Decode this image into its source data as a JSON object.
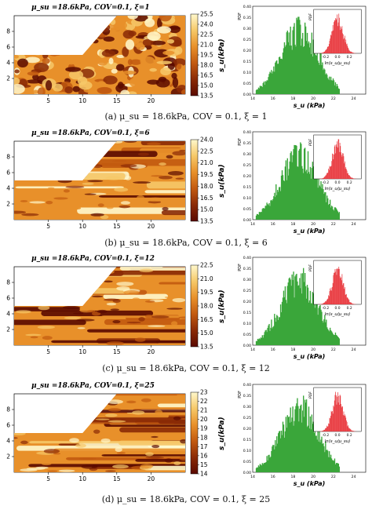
{
  "colors": {
    "cmap": [
      "#5a0a00",
      "#8a2a06",
      "#c25a10",
      "#e8902a",
      "#f6c868",
      "#fff8cc"
    ],
    "hist_green": "#3aa63a",
    "hist_red": "#e8343a"
  },
  "field": {
    "x_ticks": [
      "5",
      "10",
      "15",
      "20"
    ],
    "y_ticks": [
      "8",
      "6",
      "4",
      "2"
    ],
    "cbar_label": "s_u(kPa)"
  },
  "hist": {
    "ylabel": "PDF",
    "x_ticks": [
      "14",
      "16",
      "18",
      "20",
      "22",
      "24"
    ],
    "y_ticks": [
      "0.40",
      "0.35",
      "0.30",
      "0.25",
      "0.20",
      "0.15",
      "0.10",
      "0.05",
      "0.00"
    ],
    "xlabel": "s_u (kPa)",
    "inset_ylabel": "PDF",
    "inset_x_ticks": [
      "-0.2",
      "0.0",
      "0.2"
    ]
  },
  "panels": [
    {
      "title": "μ_su =18.6kPa, COV=0.1, ξ=1",
      "caption": "(a)   μ_su = 18.6kPa, COV = 0.1, ξ = 1",
      "cbar_ticks": [
        "25.5",
        "24.0",
        "22.5",
        "21.0",
        "19.5",
        "18.0",
        "16.5",
        "15.0",
        "13.5"
      ],
      "inset_xlabel": "ln(s_u/μ_su)",
      "band_count": 0
    },
    {
      "title": "μ_su =18.6kPa, COV=0.1, ξ=6",
      "caption": "(b)   μ_su = 18.6kPa, COV = 0.1, ξ = 6",
      "cbar_ticks": [
        "24.0",
        "22.5",
        "21.0",
        "19.5",
        "18.0",
        "16.5",
        "15.0",
        "13.5"
      ],
      "inset_xlabel": "ln(s_u/μ_su)",
      "band_count": 6
    },
    {
      "title": "μ_su =18.6kPa, COV=0.1, ξ=12",
      "caption": "(c)   μ_su = 18.6kPa, COV = 0.1, ξ = 12",
      "cbar_ticks": [
        "22.5",
        "21.0",
        "19.5",
        "18.0",
        "16.5",
        "15.0",
        "13.5"
      ],
      "inset_xlabel": "ln(s_u/μ_su)",
      "band_count": 10
    },
    {
      "title": "μ_su =18.6kPa, COV=0.1, ξ=25",
      "caption": "(d)   μ_su = 18.6kPa, COV = 0.1, ξ = 25",
      "cbar_ticks": [
        "23",
        "22",
        "21",
        "20",
        "19",
        "18",
        "17",
        "16",
        "15",
        "14"
      ],
      "inset_xlabel": "ln(s_u/μ_su)",
      "band_count": 14
    }
  ]
}
